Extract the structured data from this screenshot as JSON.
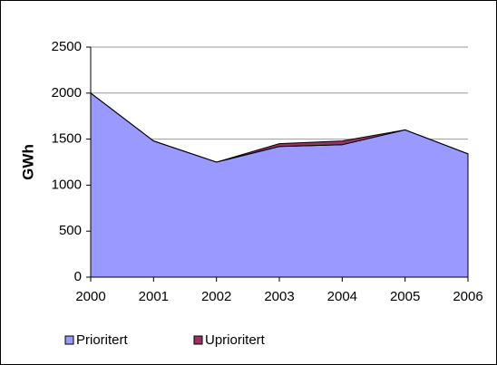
{
  "chart_data": {
    "type": "area",
    "stacked": true,
    "y_label": "GWh",
    "categories": [
      "2000",
      "2001",
      "2002",
      "2003",
      "2004",
      "2005",
      "2006"
    ],
    "series": [
      {
        "name": "Prioritert",
        "color": "#9999ff",
        "values": [
          2000,
          1480,
          1250,
          1420,
          1440,
          1600,
          1340
        ]
      },
      {
        "name": "Uprioritert",
        "color": "#993366",
        "values": [
          0,
          0,
          0,
          30,
          40,
          0,
          0
        ]
      }
    ],
    "ylim": [
      0,
      2500
    ],
    "yticks": [
      0,
      500,
      1000,
      1500,
      2000,
      2500
    ],
    "grid": true,
    "legend": "bottom"
  }
}
